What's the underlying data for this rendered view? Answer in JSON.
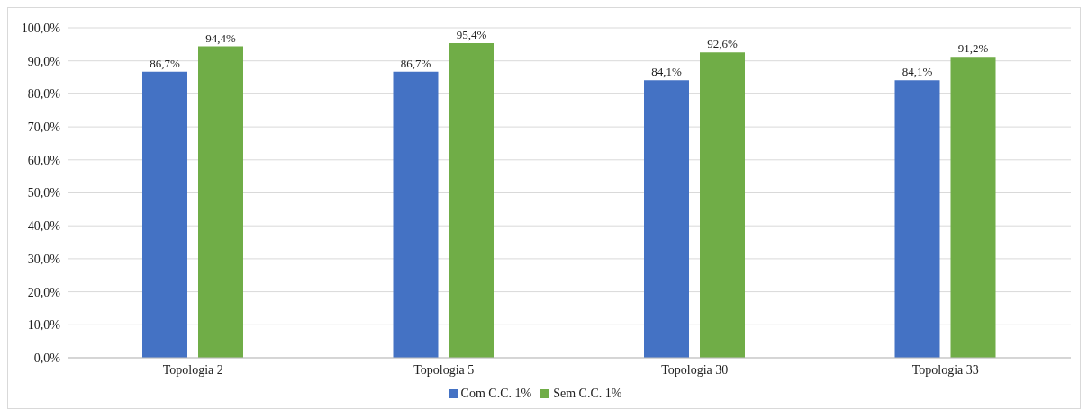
{
  "chart_data": {
    "type": "bar",
    "categories": [
      "Topologia 2",
      "Topologia 5",
      "Topologia 30",
      "Topologia 33"
    ],
    "series": [
      {
        "name": "Com C.C. 1%",
        "color": "#4472c4",
        "values": [
          86.7,
          86.7,
          84.1,
          84.1
        ],
        "value_labels": [
          "86,7%",
          "86,7%",
          "84,1%",
          "84,1%"
        ]
      },
      {
        "name": "Sem C.C. 1%",
        "color": "#70ad47",
        "values": [
          94.4,
          95.4,
          92.6,
          91.2
        ],
        "value_labels": [
          "94,4%",
          "95,4%",
          "92,6%",
          "91,2%"
        ]
      }
    ],
    "ylim": [
      0,
      100
    ],
    "yticks": [
      {
        "value": 0,
        "label": "0,0%"
      },
      {
        "value": 10,
        "label": "10,0%"
      },
      {
        "value": 20,
        "label": "20,0%"
      },
      {
        "value": 30,
        "label": "30,0%"
      },
      {
        "value": 40,
        "label": "40,0%"
      },
      {
        "value": 50,
        "label": "50,0%"
      },
      {
        "value": 60,
        "label": "60,0%"
      },
      {
        "value": 70,
        "label": "70,0%"
      },
      {
        "value": 80,
        "label": "80,0%"
      },
      {
        "value": 90,
        "label": "90,0%"
      },
      {
        "value": 100,
        "label": "100,0%"
      }
    ],
    "grid": "y",
    "legend": "bottom"
  }
}
